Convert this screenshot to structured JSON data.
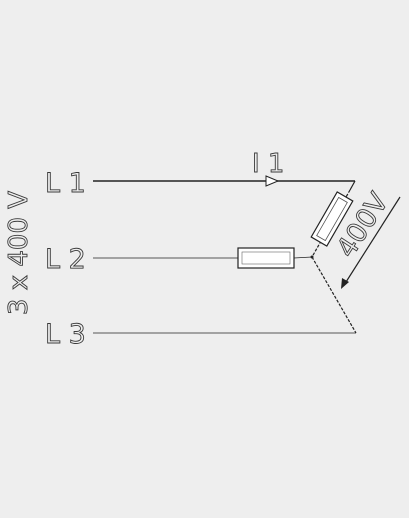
{
  "diagram": {
    "supply_label": "3 x 400 V",
    "lines": [
      {
        "label": "L 1"
      },
      {
        "label": "L 2"
      },
      {
        "label": "L 3"
      }
    ],
    "current_label": "I 1",
    "voltage_label": "400V"
  },
  "colors": {
    "background": "#eeeeee",
    "wire": "#222222",
    "resistor_fill": "#ffffff"
  }
}
